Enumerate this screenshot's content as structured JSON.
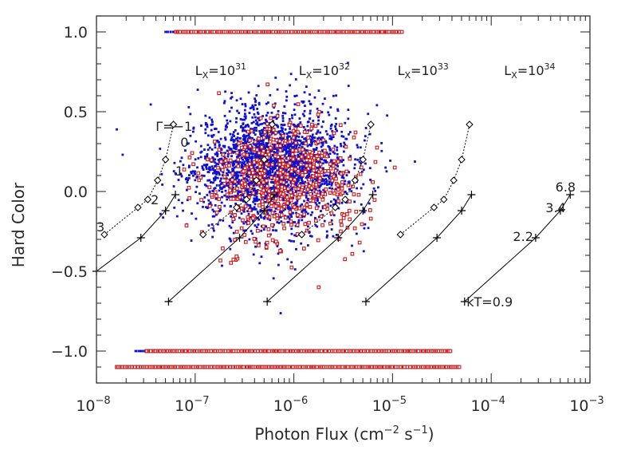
{
  "chart_data": {
    "type": "scatter",
    "title": "",
    "xlabel_main": "Photon Flux (cm",
    "xlabel_exp1": "−2",
    "xlabel_mid": " s",
    "xlabel_exp2": "−1",
    "xlabel_end": ")",
    "ylabel": "Hard Color",
    "x_scale": "log",
    "xlim": [
      1e-08,
      0.001
    ],
    "ylim": [
      -1.2,
      1.1
    ],
    "x_ticks": [
      {
        "exp": "−8",
        "value": 1e-08
      },
      {
        "exp": "−7",
        "value": 1e-07
      },
      {
        "exp": "−6",
        "value": 1e-06
      },
      {
        "exp": "−5",
        "value": 1e-05
      },
      {
        "exp": "−4",
        "value": 0.0001
      },
      {
        "exp": "−3",
        "value": 0.001
      }
    ],
    "x_tick_base": "10",
    "y_ticks": [
      {
        "label": "1.0",
        "value": 1.0
      },
      {
        "label": "0.5",
        "value": 0.5
      },
      {
        "label": "0.0",
        "value": 0.0
      },
      {
        "label": "−0.5",
        "value": -0.5
      },
      {
        "label": "−1.0",
        "value": -1.0
      }
    ],
    "colors": {
      "blue": "#1010d0",
      "red": "#d01818",
      "axis": "#333333",
      "model": "#000000"
    },
    "series": [
      {
        "name": "blue sources (filled dots)",
        "color": "#1010d0",
        "marker": "dot",
        "cloud": {
          "center_log_flux": -6.2,
          "center_hc": 0.15,
          "log_spread": 0.38,
          "hc_spread": 0.17,
          "n": 2600
        },
        "bands": [
          {
            "hc": 1.0,
            "log_min": -7.3,
            "log_max": -5.0
          },
          {
            "hc": -1.0,
            "log_min": -7.6,
            "log_max": -4.6
          },
          {
            "hc": -1.1,
            "log_min": -7.7,
            "log_max": -5.0
          }
        ]
      },
      {
        "name": "red sources (open squares)",
        "color": "#d01818",
        "marker": "open-square",
        "cloud": {
          "center_log_flux": -6.1,
          "center_hc": 0.05,
          "log_spread": 0.38,
          "hc_spread": 0.18,
          "n": 560
        },
        "bands": [
          {
            "hc": 1.0,
            "log_min": -7.2,
            "log_max": -4.9
          },
          {
            "hc": -1.0,
            "log_min": -7.5,
            "log_max": -4.4
          },
          {
            "hc": -1.1,
            "log_min": -7.8,
            "log_max": -4.3
          }
        ]
      }
    ],
    "annotations": {
      "lx": [
        {
          "base": "L",
          "sub": "X",
          "eq": "=10",
          "exp": "31",
          "log_flux": -7.0,
          "hc": 0.73
        },
        {
          "base": "L",
          "sub": "X",
          "eq": "=10",
          "exp": "32",
          "log_flux": -5.95,
          "hc": 0.73
        },
        {
          "base": "L",
          "sub": "X",
          "eq": "=10",
          "exp": "33",
          "log_flux": -4.95,
          "hc": 0.73
        },
        {
          "base": "L",
          "sub": "X",
          "eq": "=10",
          "exp": "34",
          "log_flux": -3.87,
          "hc": 0.73
        }
      ],
      "gamma": [
        {
          "text": "Γ=−1",
          "log_flux": -7.4,
          "hc": 0.38
        },
        {
          "text": "0",
          "log_flux": -7.15,
          "hc": 0.28
        },
        {
          "text": "1",
          "log_flux": -7.2,
          "hc": 0.1
        },
        {
          "text": "2",
          "log_flux": -7.45,
          "hc": -0.08
        },
        {
          "text": "3",
          "log_flux": -8.0,
          "hc": -0.25
        }
      ],
      "kt": [
        {
          "text": "kT=0.9",
          "log_flux": -4.25,
          "hc": -0.72
        },
        {
          "text": "2.2",
          "log_flux": -3.78,
          "hc": -0.31
        },
        {
          "text": "3.4",
          "log_flux": -3.45,
          "hc": -0.13
        },
        {
          "text": "6.8",
          "log_flux": -3.35,
          "hc": 0.0
        }
      ]
    },
    "powerlaw_tracks": [
      {
        "points": [
          [
            -7.92,
            -0.27
          ],
          [
            -7.58,
            -0.1
          ],
          [
            -7.48,
            -0.05
          ],
          [
            -7.38,
            0.07
          ],
          [
            -7.3,
            0.2
          ],
          [
            -7.22,
            0.42
          ]
        ]
      },
      {
        "points": [
          [
            -6.92,
            -0.27
          ],
          [
            -6.58,
            -0.1
          ],
          [
            -6.48,
            -0.05
          ],
          [
            -6.38,
            0.07
          ],
          [
            -6.3,
            0.2
          ],
          [
            -6.22,
            0.42
          ]
        ]
      },
      {
        "points": [
          [
            -5.92,
            -0.27
          ],
          [
            -5.58,
            -0.1
          ],
          [
            -5.48,
            -0.05
          ],
          [
            -5.38,
            0.07
          ],
          [
            -5.3,
            0.2
          ],
          [
            -5.22,
            0.42
          ]
        ]
      },
      {
        "points": [
          [
            -4.92,
            -0.27
          ],
          [
            -4.58,
            -0.1
          ],
          [
            -4.48,
            -0.05
          ],
          [
            -4.38,
            0.07
          ],
          [
            -4.3,
            0.2
          ],
          [
            -4.22,
            0.42
          ]
        ]
      }
    ],
    "thermal_tracks": [
      {
        "points": [
          [
            -8.0,
            -0.5
          ],
          [
            -7.55,
            -0.29
          ],
          [
            -7.3,
            -0.12
          ],
          [
            -7.2,
            -0.02
          ]
        ]
      },
      {
        "points": [
          [
            -7.27,
            -0.69
          ],
          [
            -6.55,
            -0.29
          ],
          [
            -6.3,
            -0.12
          ],
          [
            -6.2,
            -0.02
          ]
        ]
      },
      {
        "points": [
          [
            -6.27,
            -0.69
          ],
          [
            -5.55,
            -0.29
          ],
          [
            -5.3,
            -0.12
          ],
          [
            -5.2,
            -0.02
          ]
        ]
      },
      {
        "points": [
          [
            -5.27,
            -0.69
          ],
          [
            -4.55,
            -0.29
          ],
          [
            -4.3,
            -0.12
          ],
          [
            -4.2,
            -0.02
          ]
        ]
      },
      {
        "points": [
          [
            -4.27,
            -0.69
          ],
          [
            -3.55,
            -0.29
          ],
          [
            -3.3,
            -0.12
          ],
          [
            -3.2,
            -0.02
          ]
        ]
      }
    ]
  }
}
